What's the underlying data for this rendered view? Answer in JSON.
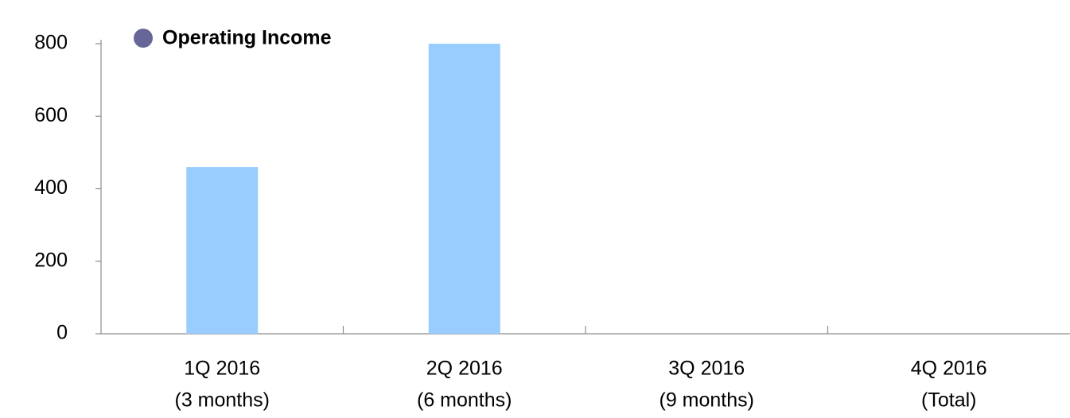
{
  "chart_data": {
    "type": "bar",
    "categories": [
      "1Q 2016",
      "2Q 2016",
      "3Q 2016",
      "4Q 2016"
    ],
    "category_notes": [
      "(3 months)",
      "(6 months)",
      "(9 months)",
      "(Total)"
    ],
    "series": [
      {
        "name": "Operating Income",
        "color": "#99ccff",
        "legend_color": "#666699",
        "values": [
          460,
          800,
          null,
          null
        ]
      }
    ],
    "ylim": [
      0,
      800
    ],
    "yticks": [
      0,
      200,
      400,
      600,
      800
    ],
    "legend": "top-left",
    "grid": false
  }
}
